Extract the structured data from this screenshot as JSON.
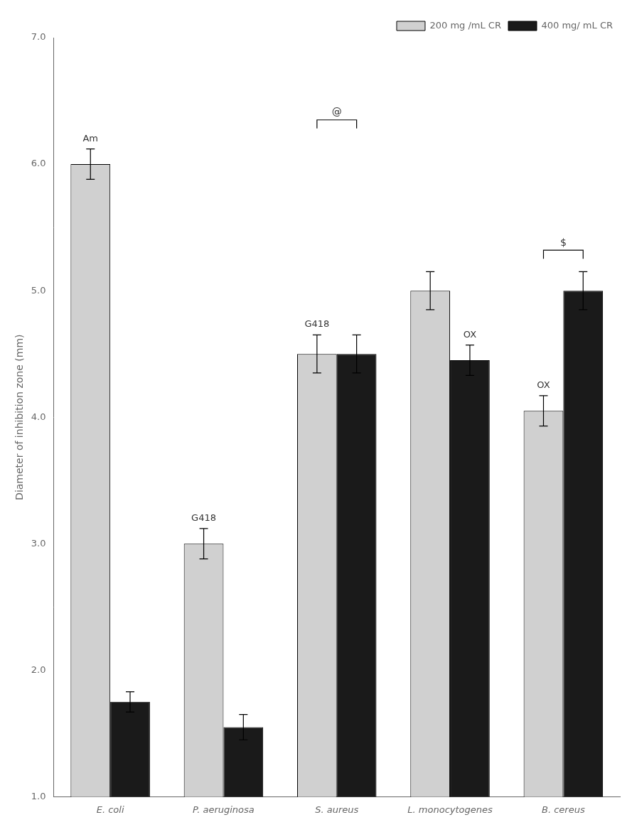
{
  "chart_data": {
    "type": "bar",
    "categories": [
      "E. coli",
      "P. aeruginosa",
      "S. aureus",
      "L. monocytogenes",
      "B. cereus"
    ],
    "series": [
      {
        "name": "200 mg /mL CR",
        "color": "#d0d0d0",
        "values": [
          6.0,
          3.0,
          4.5,
          5.0,
          4.05
        ],
        "errors": [
          0.12,
          0.12,
          0.15,
          0.15,
          0.12
        ]
      },
      {
        "name": "400 mg/ mL CR",
        "color": "#1a1a1a",
        "values": [
          1.75,
          1.55,
          4.5,
          4.45,
          5.0
        ],
        "errors": [
          0.08,
          0.1,
          0.15,
          0.12,
          0.15
        ]
      }
    ],
    "ylabel": "Diameter of inhibition zone (mm)",
    "ylim": [
      1.0,
      7.0
    ],
    "yticks": [
      {
        "value": 1,
        "label": "1.0"
      },
      {
        "value": 2,
        "label": "2.0"
      },
      {
        "value": 3,
        "label": "3.0"
      },
      {
        "value": 4,
        "label": "4.0"
      },
      {
        "value": 5,
        "label": "5.0"
      },
      {
        "value": 6,
        "label": "6.0"
      },
      {
        "value": 7,
        "label": "7.0"
      }
    ],
    "grid": false,
    "legend": "upper right",
    "annotations": [
      {
        "text": "Am",
        "series": "200 mg /mL CR",
        "category": "E. coli"
      },
      {
        "text": "G418",
        "series": "200 mg /mL CR",
        "category": "P. aeruginosa"
      },
      {
        "text": "G418",
        "series": "200 mg /mL CR",
        "category": "S. aureus"
      },
      {
        "text": "OX",
        "series": "400 mg/ mL CR",
        "category": "L. monocytogenes"
      },
      {
        "text": "OX",
        "series": "200 mg /mL CR",
        "category": "B. cereus"
      },
      {
        "text": "@",
        "category": "S. aureus",
        "y": 6.35,
        "bracket": true
      },
      {
        "text": "$",
        "category": "B. cereus",
        "y": 5.32,
        "bracket": true
      }
    ]
  }
}
